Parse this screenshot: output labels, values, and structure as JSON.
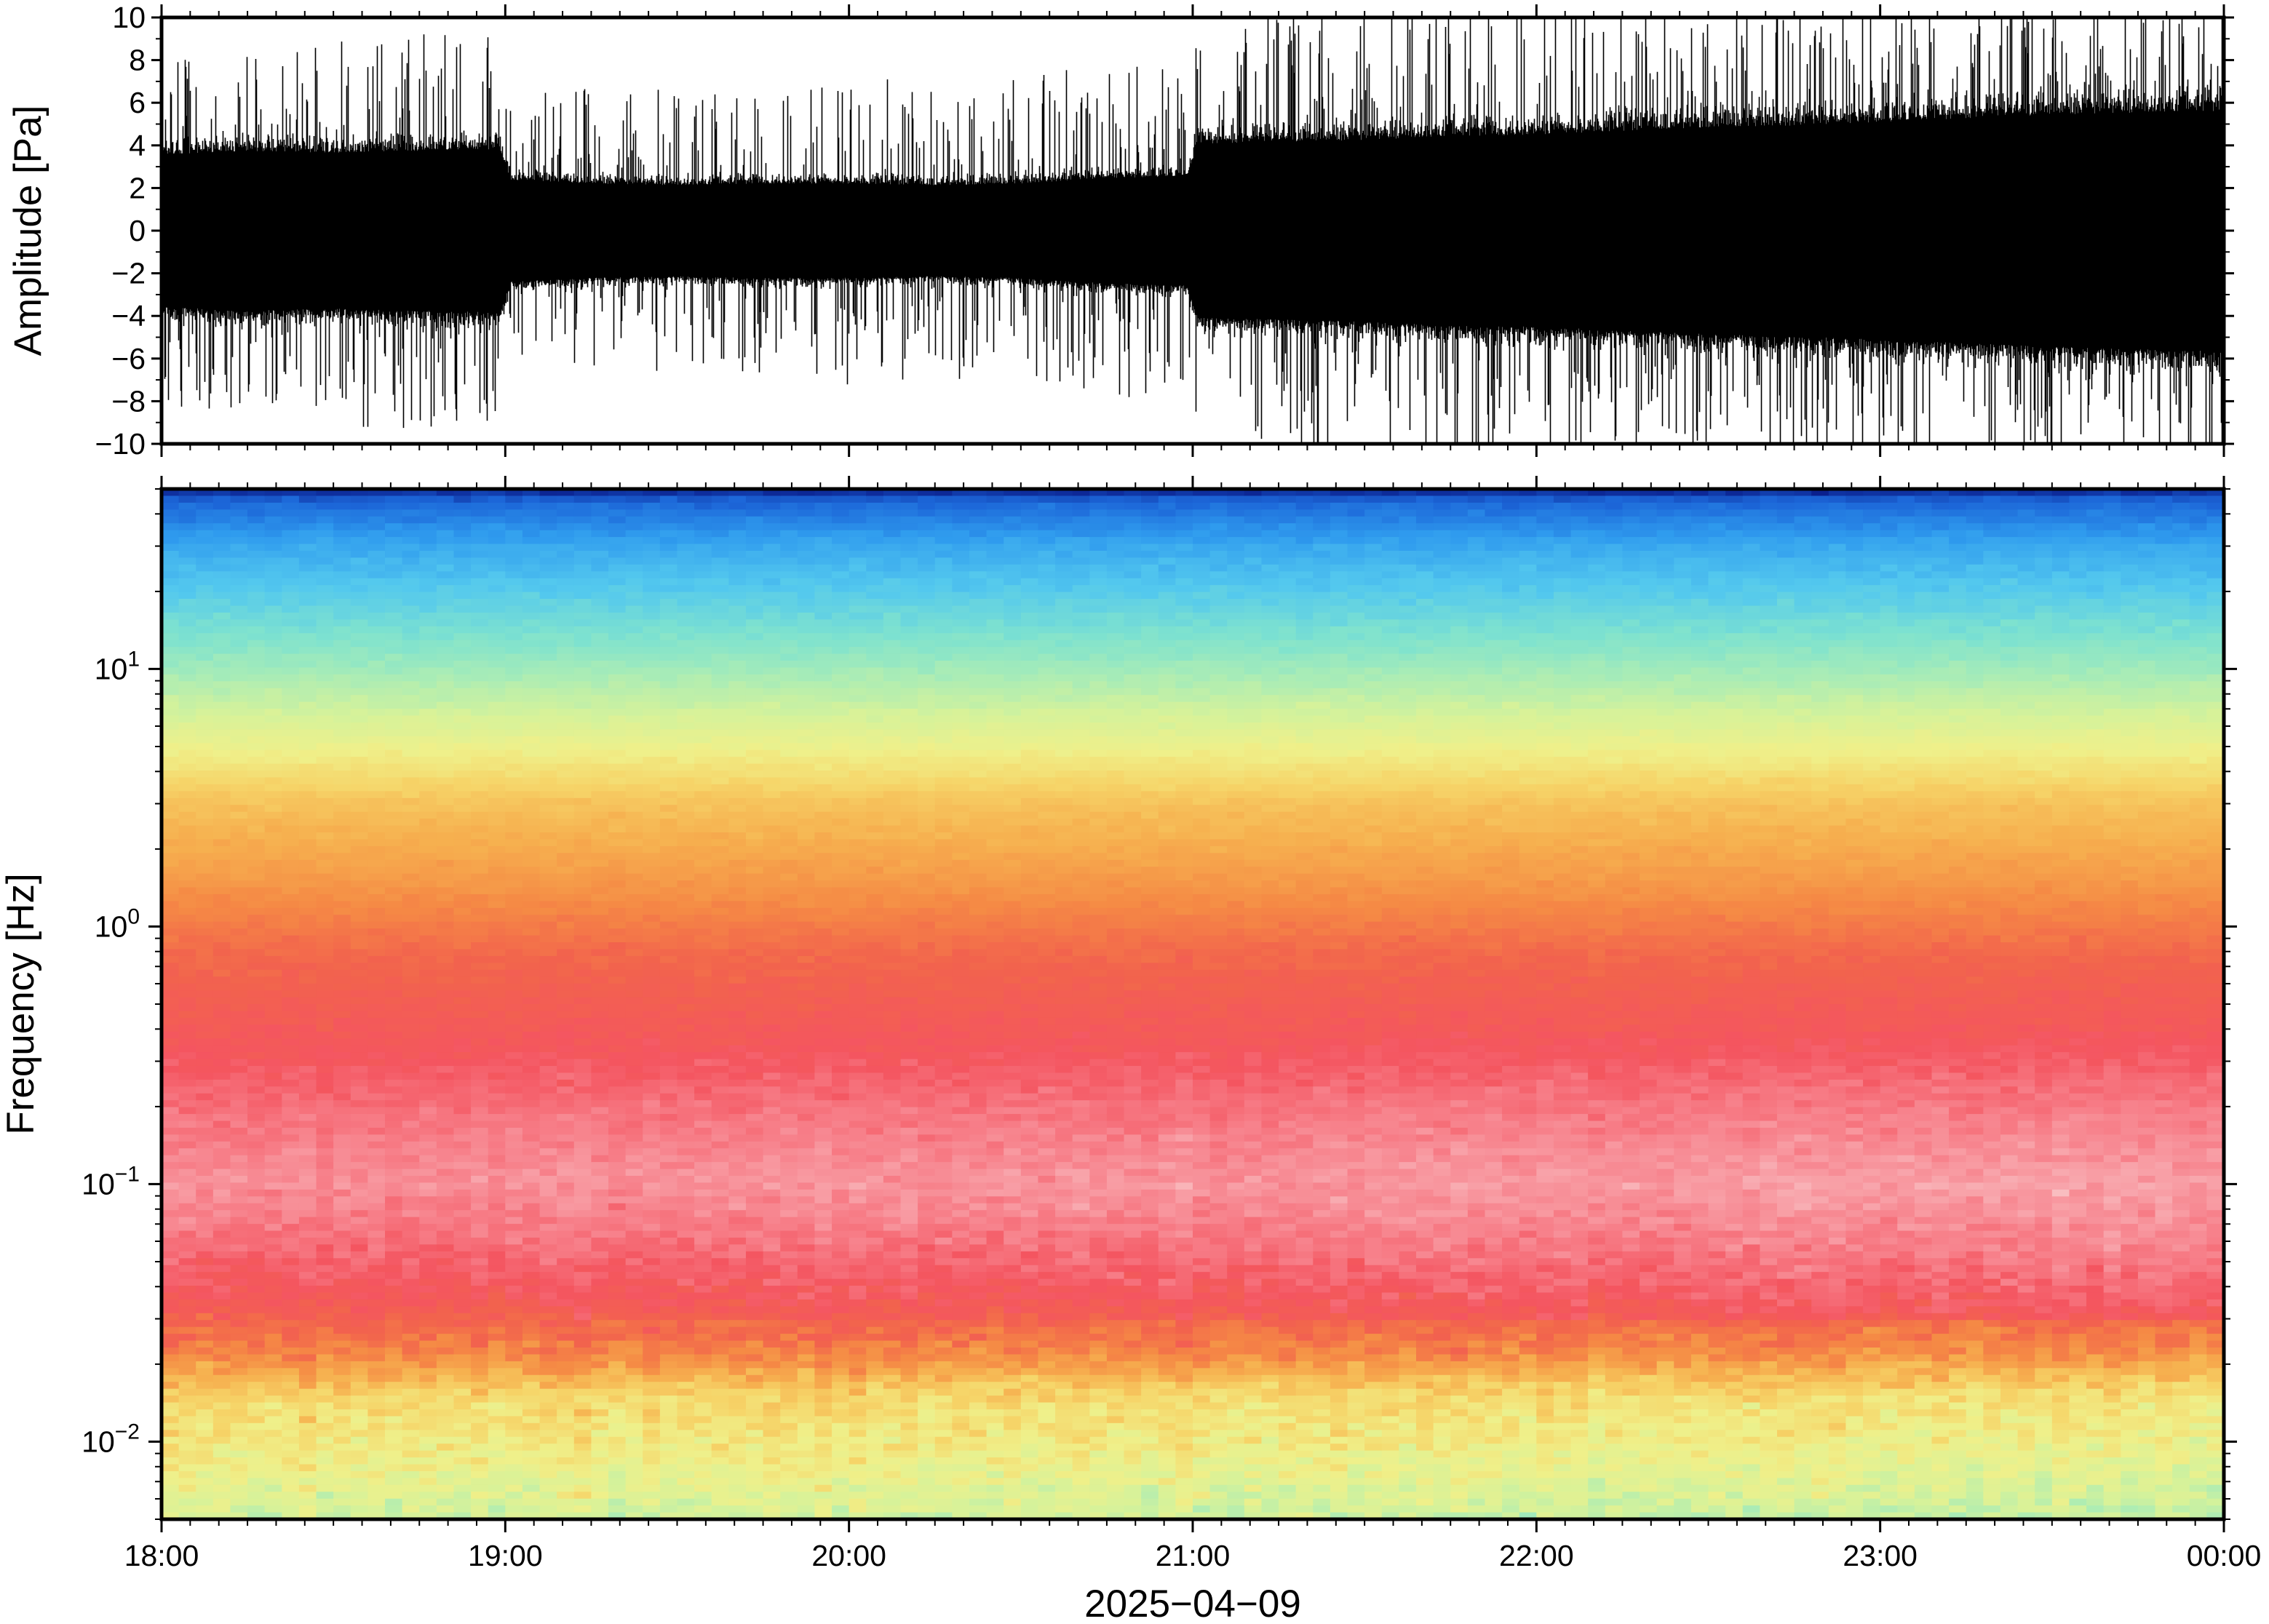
{
  "chart_data": [
    {
      "type": "line",
      "ylabel": "Amplitude [Pa]",
      "ylim": [
        -10,
        10
      ],
      "yticks": [
        10,
        8,
        6,
        4,
        2,
        0,
        -2,
        -4,
        -6,
        -8,
        -10
      ],
      "ytick_labels": [
        "10",
        "8",
        "6",
        "4",
        "2",
        "0",
        "−2",
        "−4",
        "−6",
        "−8",
        "−10"
      ],
      "xlim": [
        "18:00",
        "00:00"
      ],
      "series": [
        {
          "color": "#000000",
          "envelope_times": [
            "18:00",
            "18:15",
            "18:30",
            "18:45",
            "18:59",
            "19:01",
            "19:15",
            "19:30",
            "19:45",
            "20:00",
            "20:15",
            "20:30",
            "20:45",
            "20:59",
            "21:01",
            "21:15",
            "21:30",
            "21:45",
            "22:00",
            "22:15",
            "22:30",
            "22:45",
            "23:00",
            "23:15",
            "23:30",
            "23:45",
            "00:00"
          ],
          "envelope_amplitude": [
            4.2,
            4.4,
            4.3,
            4.4,
            4.5,
            2.8,
            2.6,
            2.5,
            2.6,
            2.6,
            2.5,
            2.6,
            2.9,
            3.0,
            4.8,
            4.9,
            5.0,
            5.2,
            5.3,
            5.5,
            5.7,
            5.8,
            6.0,
            6.2,
            6.4,
            6.5,
            6.6
          ],
          "typical_peak_amplitude": [
            7.5,
            8.0,
            8.5,
            8.5,
            8.5,
            6.0,
            6.0,
            6.0,
            6.0,
            6.5,
            6.5,
            6.5,
            7.0,
            7.0,
            9.0,
            9.5,
            9.5,
            10.0,
            10.0,
            10.0,
            10.0,
            10.0,
            10.0,
            10.0,
            10.0,
            10.0,
            10.0
          ]
        }
      ]
    },
    {
      "type": "heatmap",
      "ylabel": "Frequency [Hz]",
      "xlabel": "2025−04−09",
      "yscale": "log",
      "ylim": [
        0.005,
        50
      ],
      "yticks": [
        0.01,
        0.1,
        1,
        10
      ],
      "ytick_labels": [
        {
          "base": "10",
          "exp": "−2"
        },
        {
          "base": "10",
          "exp": "−1"
        },
        {
          "base": "10",
          "exp": "0"
        },
        {
          "base": "10",
          "exp": "1"
        }
      ],
      "x": [
        "18:00",
        "19:00",
        "20:00",
        "21:00",
        "22:00",
        "23:00",
        "00:00"
      ],
      "xlim": [
        "18:00",
        "00:00"
      ],
      "colorscale": [
        "#0a1e8c",
        "#1c66d8",
        "#2f9bee",
        "#53c8ee",
        "#7ee2cf",
        "#a9ecb6",
        "#d6f29a",
        "#eff08a",
        "#f6d468",
        "#f6b04f",
        "#f58a45",
        "#f2634d",
        "#f45560",
        "#f7808a",
        "#f8a8ae",
        "#fbdcdc"
      ],
      "frequency_profile": [
        {
          "freq": 50,
          "level": 0
        },
        {
          "freq": 45,
          "level": 1
        },
        {
          "freq": 30,
          "level": 2.3
        },
        {
          "freq": 20,
          "level": 3.1
        },
        {
          "freq": 12,
          "level": 4.3
        },
        {
          "freq": 6,
          "level": 6.3
        },
        {
          "freq": 3,
          "level": 8.5
        },
        {
          "freq": 1.5,
          "level": 9.6
        },
        {
          "freq": 0.8,
          "level": 10.8
        },
        {
          "freq": 0.4,
          "level": 11.6
        },
        {
          "freq": 0.2,
          "level": 12.6
        },
        {
          "freq": 0.1,
          "level": 13.4
        },
        {
          "freq": 0.06,
          "level": 12.6
        },
        {
          "freq": 0.035,
          "level": 11.6
        },
        {
          "freq": 0.022,
          "level": 10.2
        },
        {
          "freq": 0.015,
          "level": 8.0
        },
        {
          "freq": 0.008,
          "level": 7.0
        },
        {
          "freq": 0.005,
          "level": 6.0
        }
      ],
      "time_trend": [
        {
          "time": "18:00",
          "shift": 0
        },
        {
          "time": "21:00",
          "shift": 0.3
        },
        {
          "time": "00:00",
          "shift": 1.0
        }
      ]
    }
  ]
}
